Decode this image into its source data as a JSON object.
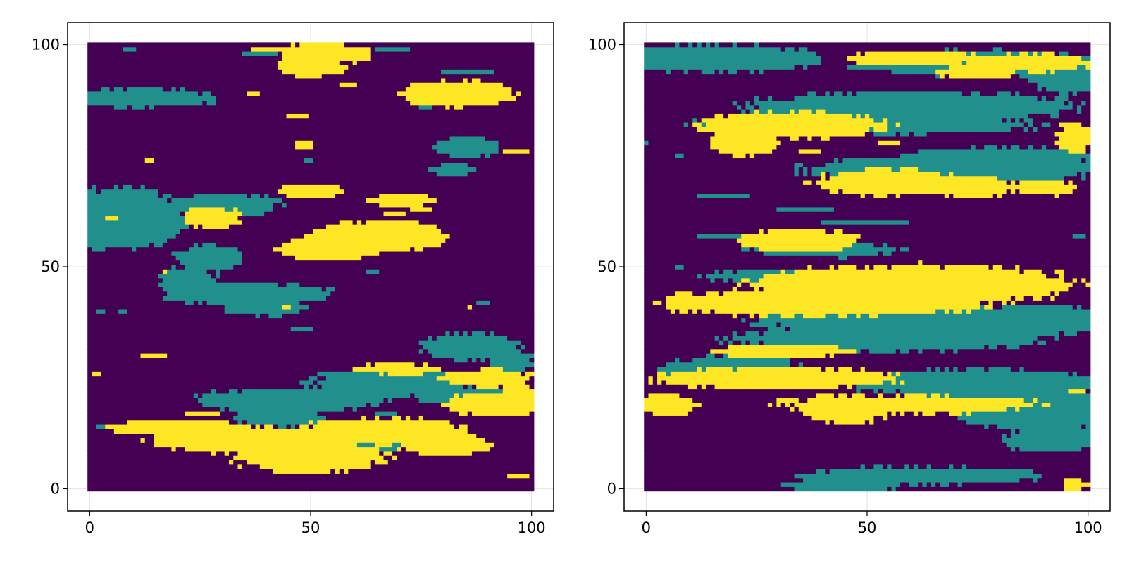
{
  "colors": {
    "background": "#ffffff",
    "axis_frame": "#000000",
    "grid": "#e6e6e6",
    "facies_0": "#440154",
    "facies_1": "#21908c",
    "facies_2": "#fde725"
  },
  "chart_data": [
    {
      "type": "heatmap",
      "title": "",
      "xlabel": "",
      "ylabel": "",
      "xlim": [
        -5,
        105
      ],
      "ylim": [
        -5,
        105
      ],
      "xticks": [
        0,
        50,
        100
      ],
      "yticks": [
        0,
        50,
        100
      ],
      "xtick_labels": [
        "0",
        "50",
        "100"
      ],
      "ytick_labels": [
        "0",
        "50",
        "100"
      ],
      "grid": true,
      "values": [
        0,
        1,
        2
      ],
      "colormap": [
        "#440154",
        "#21908c",
        "#fde725"
      ],
      "layers": [
        {
          "value": 1,
          "blobs": [
            [
              10,
              88,
              18,
              2.2
            ],
            [
              5,
              61,
              18,
              7
            ],
            [
              31,
              64,
              12,
              2.5
            ],
            [
              27,
              52,
              8,
              3
            ],
            [
              22,
              47,
              7,
              3
            ],
            [
              35,
              44,
              20,
              2.5
            ],
            [
              40,
              41,
              10,
              2
            ],
            [
              85,
              77,
              7,
              2.5
            ],
            [
              82,
              72,
              5,
              1.5
            ],
            [
              86,
              32,
              12,
              3
            ],
            [
              95,
              29,
              5,
              3
            ],
            [
              68,
              24,
              18,
              3.5
            ],
            [
              45,
              20,
              22,
              2.5
            ],
            [
              43,
              16,
              10,
              2
            ],
            [
              86,
              21,
              14,
              2
            ],
            [
              72,
              13,
              12,
              1.5
            ],
            [
              65,
              10,
              6,
              1.5
            ]
          ],
          "rects": [
            [
              8,
              99,
              3,
              1
            ],
            [
              35,
              98,
              8,
              1
            ],
            [
              65,
              99,
              8,
              1
            ],
            [
              80,
              94,
              12,
              1
            ],
            [
              48,
              96,
              6,
              1
            ],
            [
              75,
              86,
              3,
              1
            ],
            [
              49,
              74,
              2,
              1
            ],
            [
              2,
              40,
              2,
              1
            ],
            [
              7,
              40,
              2,
              1
            ],
            [
              63,
              49,
              3,
              1
            ],
            [
              63,
              21,
              4,
              1
            ],
            [
              65,
              17,
              5,
              1
            ],
            [
              2,
              14,
              3,
              1
            ],
            [
              17,
              13,
              5,
              1
            ],
            [
              73,
              59,
              6,
              1
            ],
            [
              46,
              36,
              5,
              1
            ],
            [
              88,
              42,
              3,
              1
            ]
          ]
        },
        {
          "value": 2,
          "blobs": [
            [
              52,
              98,
              9,
              2.5
            ],
            [
              84,
              89,
              13,
              3
            ],
            [
              66,
              57,
              16,
              3.5
            ],
            [
              54,
              54,
              12,
              2.5
            ],
            [
              28,
              61,
              7,
              2.5
            ],
            [
              50,
              67,
              8,
              1.5
            ],
            [
              70,
              65,
              8,
              1.5
            ],
            [
              50,
              7,
              17,
              3.5
            ],
            [
              66,
              13,
              20,
              3
            ],
            [
              38,
              11,
              25,
              3
            ],
            [
              20,
              14,
              16,
              1.5
            ],
            [
              92,
              19,
              12,
              2.5
            ],
            [
              70,
              27,
              10,
              1.2
            ],
            [
              90,
              25,
              10,
              2
            ],
            [
              50,
              95,
              8,
              2
            ],
            [
              56,
              98,
              8,
              2
            ],
            [
              97,
              21,
              4,
              3
            ],
            [
              80,
              10,
              10,
              2.5
            ]
          ],
          "rects": [
            [
              37,
              99,
              8,
              1
            ],
            [
              73,
              91,
              7,
              1
            ],
            [
              57,
              91,
              4,
              1
            ],
            [
              70,
              89,
              5,
              1
            ],
            [
              36,
              89,
              3,
              1
            ],
            [
              45,
              84,
              5,
              1
            ],
            [
              47,
              77,
              4,
              2
            ],
            [
              13,
              74,
              2,
              1
            ],
            [
              94,
              76,
              6,
              1
            ],
            [
              4,
              61,
              3,
              1
            ],
            [
              12,
              30,
              6,
              1
            ],
            [
              1,
              26,
              2,
              1
            ],
            [
              22,
              17,
              8,
              1
            ],
            [
              95,
              3,
              5,
              1
            ],
            [
              44,
              41,
              2,
              1
            ],
            [
              17,
              49,
              1,
              1
            ],
            [
              86,
              41,
              1,
              1
            ],
            [
              67,
              62,
              5,
              1
            ],
            [
              73,
              63,
              5,
              1
            ],
            [
              90,
              27,
              4,
              1
            ]
          ]
        }
      ]
    },
    {
      "type": "heatmap",
      "title": "",
      "xlabel": "",
      "ylabel": "",
      "xlim": [
        -5,
        105
      ],
      "ylim": [
        -5,
        105
      ],
      "xticks": [
        0,
        50,
        100
      ],
      "yticks": [
        0,
        50,
        100
      ],
      "xtick_labels": [
        "0",
        "50",
        "100"
      ],
      "ytick_labels": [
        "0",
        "50",
        "100"
      ],
      "grid": true,
      "values": [
        0,
        1,
        2
      ],
      "colormap": [
        "#440154",
        "#21908c",
        "#fde725"
      ],
      "layers": [
        {
          "value": 1,
          "blobs": [
            [
              15,
              97,
              26,
              3
            ],
            [
              75,
              96,
              28,
              3
            ],
            [
              95,
              93,
              8,
              4
            ],
            [
              60,
              86,
              38,
              3.5
            ],
            [
              50,
              82,
              40,
              2
            ],
            [
              70,
              72,
              34,
              3
            ],
            [
              80,
              75,
              22,
              2
            ],
            [
              65,
              38,
              40,
              3.5
            ],
            [
              90,
              38,
              15,
              3.5
            ],
            [
              55,
              34,
              36,
              3
            ],
            [
              20,
              27,
              16,
              3
            ],
            [
              75,
              24,
              30,
              3
            ],
            [
              85,
              20,
              22,
              3
            ],
            [
              88,
              16,
              18,
              2.5
            ],
            [
              92,
              11,
              12,
              2.5
            ],
            [
              62,
              3,
              28,
              2
            ],
            [
              45,
              1,
              14,
              1.5
            ],
            [
              40,
              54,
              18,
              1.5
            ],
            [
              32,
              48,
              20,
              1.5
            ]
          ],
          "rects": [
            [
              12,
              66,
              12,
              1
            ],
            [
              30,
              63,
              13,
              1
            ],
            [
              40,
              60,
              20,
              1
            ],
            [
              12,
              57,
              19,
              1
            ],
            [
              34,
              73,
              2,
              1
            ],
            [
              7,
              75,
              2,
              1
            ],
            [
              0,
              78,
              1,
              1
            ],
            [
              97,
              57,
              3,
              1
            ],
            [
              97,
              72,
              3,
              1
            ],
            [
              7,
              50,
              2,
              1
            ],
            [
              44,
              52,
              2,
              1
            ],
            [
              18,
              24,
              5,
              1
            ],
            [
              60,
              49,
              6,
              1
            ]
          ]
        },
        {
          "value": 2,
          "blobs": [
            [
              33,
              82,
              22,
              3
            ],
            [
              22,
              78,
              8,
              3
            ],
            [
              56,
              69,
              18,
              3
            ],
            [
              74,
              68,
              10,
              2.5
            ],
            [
              34,
              56,
              14,
              2.5
            ],
            [
              60,
              46,
              38,
              4.5
            ],
            [
              40,
              42,
              40,
              3
            ],
            [
              30,
              31,
              16,
              1.5
            ],
            [
              30,
              25,
              28,
              2.5
            ],
            [
              60,
              19,
              30,
              2
            ],
            [
              45,
              18,
              10,
              3.5
            ],
            [
              5,
              19,
              7,
              2.5
            ],
            [
              88,
              96,
              14,
              2
            ],
            [
              75,
              94,
              10,
              1.5
            ],
            [
              97,
              79,
              4,
              3
            ],
            [
              90,
              68,
              8,
              1.5
            ],
            [
              64,
              97,
              12,
              1.5
            ],
            [
              53,
              97,
              7,
              1.5
            ],
            [
              97,
              1,
              3,
              1.5
            ]
          ],
          "rects": [
            [
              35,
              76,
              5,
              1
            ],
            [
              53,
              78,
              5,
              1
            ],
            [
              94,
              82,
              5,
              1
            ],
            [
              93,
              66,
              1,
              1
            ],
            [
              25,
              55,
              4,
              1
            ],
            [
              96,
              22,
              4,
              1
            ],
            [
              30,
              20,
              5,
              1
            ]
          ]
        }
      ]
    }
  ]
}
